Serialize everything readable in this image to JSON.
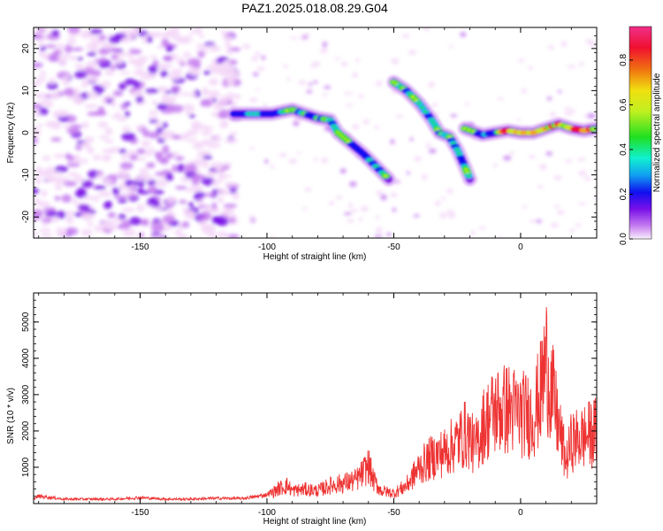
{
  "title": "PAZ1.2025.018.08.29.G04",
  "colors": {
    "snr_line": "#ee3333",
    "colormap": [
      "#f4d8f8",
      "#c77ff0",
      "#7a10e8",
      "#1010f0",
      "#10c0f0",
      "#10f0a0",
      "#20e020",
      "#c0f020",
      "#f0c010",
      "#f07010",
      "#f01030",
      "#f0308a"
    ]
  },
  "chart_data": [
    {
      "type": "heatmap",
      "title": "PAZ1.2025.018.08.29.G04",
      "xlabel": "Height of straight line (km)",
      "ylabel": "Frequency (Hz)",
      "xlim": [
        -192,
        30
      ],
      "ylim": [
        -25,
        25
      ],
      "x_ticks": [
        -150,
        -100,
        -50,
        0
      ],
      "y_ticks": [
        -20,
        -10,
        0,
        10,
        20
      ],
      "colorbar": {
        "label": "Normalized spectral amplitude",
        "range": [
          0,
          0.95
        ],
        "ticks": [
          "0.0",
          "0.2",
          "0.4",
          "0.6",
          "0.8"
        ],
        "tick_values": [
          0,
          0.2,
          0.4,
          0.6,
          0.8
        ]
      },
      "ridges": [
        {
          "points": [
            [
              -113,
              4.5
            ],
            [
              -105,
              4.5
            ],
            [
              -98,
              4.5
            ],
            [
              -90,
              5.5
            ],
            [
              -85,
              4.5
            ],
            [
              -80,
              3.5
            ],
            [
              -75,
              3
            ],
            [
              -72,
              0
            ],
            [
              -68,
              -2
            ],
            [
              -62,
              -5
            ],
            [
              -57,
              -8
            ],
            [
              -52,
              -11
            ]
          ]
        },
        {
          "points": [
            [
              -50,
              12
            ],
            [
              -45,
              10
            ],
            [
              -40,
              7
            ],
            [
              -35,
              3
            ],
            [
              -32,
              0
            ],
            [
              -28,
              -1
            ],
            [
              -25,
              -4
            ],
            [
              -22,
              -8
            ],
            [
              -20,
              -11
            ]
          ]
        },
        {
          "points": [
            [
              -22,
              1
            ],
            [
              -15,
              -0.5
            ],
            [
              -10,
              0
            ],
            [
              -5,
              0.5
            ],
            [
              0,
              0
            ],
            [
              5,
              0
            ],
            [
              10,
              1
            ],
            [
              15,
              2
            ],
            [
              20,
              1
            ],
            [
              25,
              0.5
            ],
            [
              30,
              1
            ]
          ]
        }
      ]
    },
    {
      "type": "line",
      "xlabel": "Height of straight line (km)",
      "ylabel": "SNR (10 * v/v)",
      "xlim": [
        -192,
        30
      ],
      "ylim": [
        0,
        5800
      ],
      "x_ticks": [
        -150,
        -100,
        -50,
        0
      ],
      "y_ticks": [
        1000,
        2000,
        3000,
        4000,
        5000
      ],
      "series": [
        {
          "x": [
            -192,
            -190,
            -180,
            -170,
            -160,
            -150,
            -140,
            -130,
            -120,
            -110,
            -105,
            -100,
            -95,
            -92,
            -90,
            -85,
            -80,
            -75,
            -70,
            -65,
            -62,
            -60,
            -58,
            -55,
            -50,
            -45,
            -40,
            -35,
            -30,
            -25,
            -22,
            -20,
            -18,
            -15,
            -12,
            -10,
            -5,
            0,
            5,
            8,
            10,
            12,
            15,
            18,
            20,
            25,
            30
          ],
          "values": [
            150,
            250,
            150,
            150,
            150,
            200,
            150,
            150,
            180,
            170,
            220,
            300,
            600,
            700,
            500,
            550,
            500,
            700,
            800,
            900,
            1200,
            1500,
            900,
            500,
            400,
            700,
            1400,
            1800,
            2000,
            2400,
            2700,
            2600,
            2100,
            3000,
            3400,
            3600,
            3700,
            3500,
            3400,
            4300,
            5600,
            4500,
            3000,
            1600,
            2400,
            2600,
            2800
          ]
        }
      ]
    }
  ]
}
